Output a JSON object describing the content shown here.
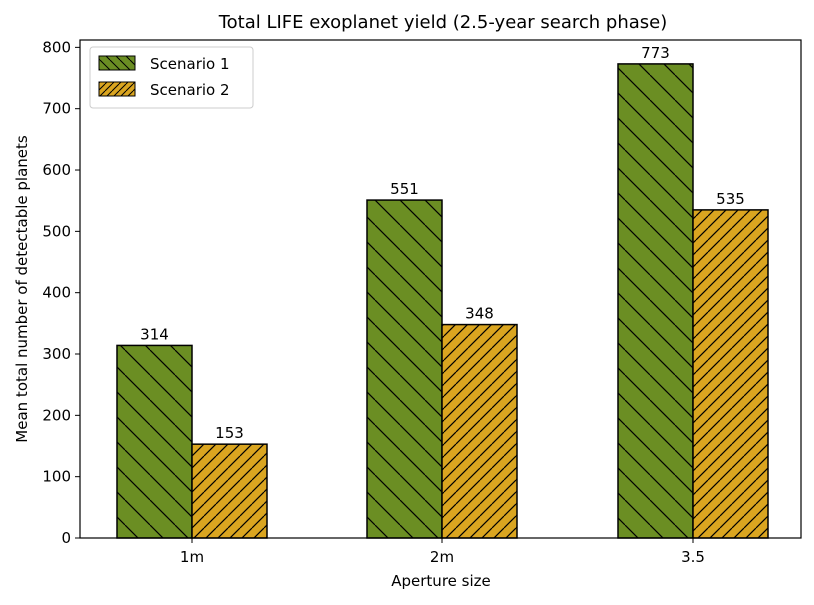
{
  "chart_data": {
    "type": "bar",
    "title": "Total LIFE exoplanet yield (2.5-year search phase)",
    "xlabel": "Aperture size",
    "ylabel": "Mean total number of detectable planets",
    "categories": [
      "1m",
      "2m",
      "3.5"
    ],
    "series": [
      {
        "name": "Scenario 1",
        "values": [
          314,
          551,
          773
        ],
        "color": "#6b8e23",
        "hatch": "backslash"
      },
      {
        "name": "Scenario 2",
        "values": [
          153,
          348,
          535
        ],
        "color": "#daa520",
        "hatch": "slash"
      }
    ],
    "ylim": [
      0,
      810
    ],
    "yticks": [
      0,
      100,
      200,
      300,
      400,
      500,
      600,
      700,
      800
    ],
    "grid": false,
    "legend_position": "top-left",
    "data_labels": true
  }
}
